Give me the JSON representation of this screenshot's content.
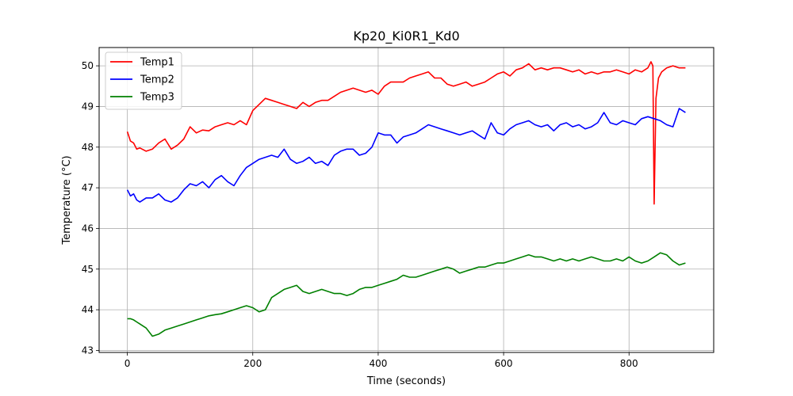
{
  "chart_data": {
    "type": "line",
    "title": "Kp20_Ki0R1_Kd0",
    "xlabel": "Time (seconds)",
    "ylabel": "Temperature (°C)",
    "xlim": [
      -45,
      935
    ],
    "ylim": [
      42.95,
      50.45
    ],
    "xticks": [
      0,
      200,
      400,
      600,
      800
    ],
    "yticks": [
      43,
      44,
      45,
      46,
      47,
      48,
      49,
      50
    ],
    "grid": true,
    "legend_position": "top-left",
    "series": [
      {
        "name": "Temp1",
        "color": "#ff0000",
        "x": [
          0,
          5,
          10,
          15,
          20,
          30,
          40,
          50,
          60,
          70,
          80,
          90,
          100,
          110,
          120,
          130,
          140,
          150,
          160,
          170,
          180,
          190,
          200,
          210,
          220,
          230,
          240,
          250,
          260,
          270,
          280,
          290,
          300,
          310,
          320,
          330,
          340,
          350,
          360,
          370,
          380,
          390,
          400,
          410,
          420,
          430,
          440,
          450,
          460,
          470,
          480,
          490,
          500,
          510,
          520,
          530,
          540,
          550,
          560,
          570,
          580,
          590,
          600,
          610,
          620,
          630,
          640,
          650,
          660,
          670,
          680,
          690,
          700,
          710,
          720,
          730,
          740,
          750,
          760,
          770,
          780,
          790,
          800,
          810,
          820,
          830,
          835,
          838,
          840,
          843,
          847,
          852,
          860,
          870,
          880,
          890
        ],
        "y": [
          48.38,
          48.15,
          48.1,
          47.95,
          47.98,
          47.9,
          47.95,
          48.1,
          48.2,
          47.95,
          48.05,
          48.2,
          48.5,
          48.35,
          48.42,
          48.4,
          48.5,
          48.55,
          48.6,
          48.55,
          48.65,
          48.55,
          48.9,
          49.05,
          49.2,
          49.15,
          49.1,
          49.05,
          49.0,
          48.95,
          49.1,
          49.0,
          49.1,
          49.15,
          49.15,
          49.25,
          49.35,
          49.4,
          49.45,
          49.4,
          49.35,
          49.4,
          49.3,
          49.5,
          49.6,
          49.6,
          49.6,
          49.7,
          49.75,
          49.8,
          49.85,
          49.7,
          49.7,
          49.55,
          49.5,
          49.55,
          49.6,
          49.5,
          49.55,
          49.6,
          49.7,
          49.8,
          49.85,
          49.75,
          49.9,
          49.95,
          50.05,
          49.9,
          49.95,
          49.9,
          49.95,
          49.95,
          49.9,
          49.85,
          49.9,
          49.8,
          49.85,
          49.8,
          49.85,
          49.85,
          49.9,
          49.85,
          49.8,
          49.9,
          49.85,
          49.95,
          50.1,
          50.0,
          46.6,
          49.2,
          49.7,
          49.85,
          49.95,
          50.0,
          49.95,
          49.95
        ]
      },
      {
        "name": "Temp2",
        "color": "#0000ff",
        "x": [
          0,
          5,
          10,
          15,
          20,
          30,
          40,
          50,
          60,
          70,
          80,
          90,
          100,
          110,
          120,
          130,
          140,
          150,
          160,
          170,
          180,
          190,
          200,
          210,
          220,
          230,
          240,
          250,
          260,
          270,
          280,
          290,
          300,
          310,
          320,
          330,
          340,
          350,
          360,
          370,
          380,
          390,
          400,
          410,
          420,
          430,
          440,
          450,
          460,
          470,
          480,
          490,
          500,
          510,
          520,
          530,
          540,
          550,
          560,
          570,
          580,
          590,
          600,
          610,
          620,
          630,
          640,
          650,
          660,
          670,
          680,
          690,
          700,
          710,
          720,
          730,
          740,
          750,
          760,
          770,
          780,
          790,
          800,
          810,
          820,
          830,
          840,
          850,
          860,
          870,
          880,
          890
        ],
        "y": [
          46.95,
          46.8,
          46.85,
          46.7,
          46.65,
          46.75,
          46.75,
          46.85,
          46.7,
          46.65,
          46.75,
          46.95,
          47.1,
          47.05,
          47.15,
          47.0,
          47.2,
          47.3,
          47.15,
          47.05,
          47.3,
          47.5,
          47.6,
          47.7,
          47.75,
          47.8,
          47.75,
          47.95,
          47.7,
          47.6,
          47.65,
          47.75,
          47.6,
          47.65,
          47.55,
          47.8,
          47.9,
          47.95,
          47.95,
          47.8,
          47.85,
          48.0,
          48.35,
          48.3,
          48.3,
          48.1,
          48.25,
          48.3,
          48.35,
          48.45,
          48.55,
          48.5,
          48.45,
          48.4,
          48.35,
          48.3,
          48.35,
          48.4,
          48.3,
          48.2,
          48.6,
          48.35,
          48.3,
          48.45,
          48.55,
          48.6,
          48.65,
          48.55,
          48.5,
          48.55,
          48.4,
          48.55,
          48.6,
          48.5,
          48.55,
          48.45,
          48.5,
          48.6,
          48.85,
          48.6,
          48.55,
          48.65,
          48.6,
          48.55,
          48.7,
          48.75,
          48.7,
          48.65,
          48.55,
          48.5,
          48.95,
          48.85
        ]
      },
      {
        "name": "Temp3",
        "color": "#008000",
        "x": [
          0,
          5,
          10,
          15,
          20,
          30,
          40,
          50,
          60,
          70,
          80,
          90,
          100,
          110,
          120,
          130,
          140,
          150,
          160,
          170,
          180,
          190,
          200,
          210,
          220,
          230,
          240,
          250,
          260,
          270,
          280,
          290,
          300,
          310,
          320,
          330,
          340,
          350,
          360,
          370,
          380,
          390,
          400,
          410,
          420,
          430,
          440,
          450,
          460,
          470,
          480,
          490,
          500,
          510,
          520,
          530,
          540,
          550,
          560,
          570,
          580,
          590,
          600,
          610,
          620,
          630,
          640,
          650,
          660,
          670,
          680,
          690,
          700,
          710,
          720,
          730,
          740,
          750,
          760,
          770,
          780,
          790,
          800,
          810,
          820,
          830,
          840,
          850,
          860,
          870,
          880,
          890
        ],
        "y": [
          43.78,
          43.78,
          43.75,
          43.7,
          43.65,
          43.55,
          43.35,
          43.4,
          43.5,
          43.55,
          43.6,
          43.65,
          43.7,
          43.75,
          43.8,
          43.85,
          43.88,
          43.9,
          43.95,
          44.0,
          44.05,
          44.1,
          44.05,
          43.95,
          44.0,
          44.3,
          44.4,
          44.5,
          44.55,
          44.6,
          44.45,
          44.4,
          44.45,
          44.5,
          44.45,
          44.4,
          44.4,
          44.35,
          44.4,
          44.5,
          44.55,
          44.55,
          44.6,
          44.65,
          44.7,
          44.75,
          44.85,
          44.8,
          44.8,
          44.85,
          44.9,
          44.95,
          45.0,
          45.05,
          45.0,
          44.9,
          44.95,
          45.0,
          45.05,
          45.05,
          45.1,
          45.15,
          45.15,
          45.2,
          45.25,
          45.3,
          45.35,
          45.3,
          45.3,
          45.25,
          45.2,
          45.25,
          45.2,
          45.25,
          45.2,
          45.25,
          45.3,
          45.25,
          45.2,
          45.2,
          45.25,
          45.2,
          45.3,
          45.2,
          45.15,
          45.2,
          45.3,
          45.4,
          45.35,
          45.2,
          45.1,
          45.15
        ]
      }
    ]
  }
}
